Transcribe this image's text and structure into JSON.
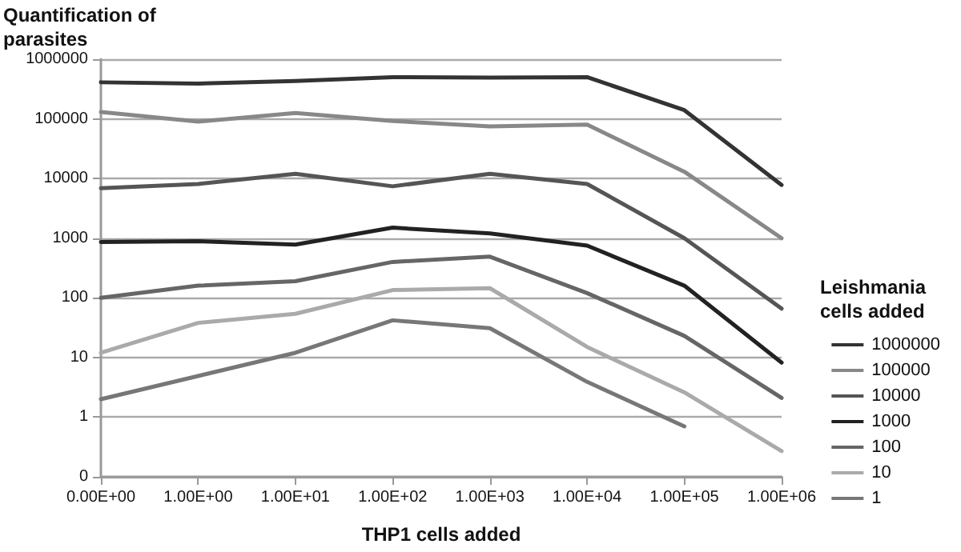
{
  "chart_data": {
    "type": "line",
    "ylabel": "Quantification of parasites",
    "xlabel": "THP1 cells added",
    "legend_title": "Leishmania cells added",
    "categories": [
      "0.00E+00",
      "1.00E+00",
      "1.00E+01",
      "1.00E+02",
      "1.00E+03",
      "1.00E+04",
      "1.00E+05",
      "1.00E+06"
    ],
    "series": [
      {
        "name": "1000000",
        "color": "#333333",
        "values": [
          410000,
          390000,
          430000,
          500000,
          490000,
          500000,
          140000,
          7800
        ]
      },
      {
        "name": "100000",
        "color": "#888888",
        "values": [
          130000,
          90000,
          125000,
          92000,
          75000,
          80000,
          13000,
          1000
        ]
      },
      {
        "name": "10000",
        "color": "#555555",
        "values": [
          6900,
          8100,
          12000,
          7400,
          12000,
          8100,
          1000,
          66
        ]
      },
      {
        "name": "1000",
        "color": "#222222",
        "values": [
          860,
          890,
          780,
          1500,
          1200,
          750,
          160,
          8.2
        ]
      },
      {
        "name": "100",
        "color": "#666666",
        "values": [
          100,
          160,
          190,
          400,
          490,
          120,
          23,
          2.1
        ]
      },
      {
        "name": "10",
        "color": "#aaaaaa",
        "values": [
          12,
          38,
          54,
          135,
          145,
          15,
          2.6,
          0.27
        ]
      },
      {
        "name": "1",
        "color": "#777777",
        "values": [
          2,
          4.9,
          12,
          42,
          31,
          3.9,
          0.7,
          null
        ]
      }
    ],
    "log": "y",
    "ylim": [
      0.1,
      1000000
    ],
    "yticks": [
      {
        "value": 0.1,
        "label": "0"
      },
      1,
      10,
      100,
      1000,
      10000,
      100000,
      1000000
    ],
    "grid": "y",
    "legend": "right",
    "marker": "none",
    "line_style": "solid"
  }
}
